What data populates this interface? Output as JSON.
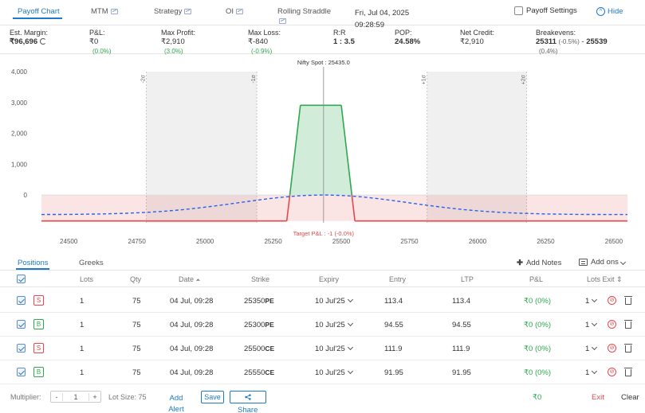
{
  "tabs": [
    {
      "label": "Payoff Chart"
    },
    {
      "label": "MTM"
    },
    {
      "label": "Strategy"
    },
    {
      "label": "OI"
    },
    {
      "label": "Rolling Straddle"
    }
  ],
  "date": {
    "line1": "Fri, Jul 04, 2025",
    "line2": "09:28:59"
  },
  "payoff_settings": "Payoff Settings",
  "hide": "Hide",
  "stats": {
    "margin": {
      "label": "Est. Margin:",
      "value": "₹96,696"
    },
    "pnl": {
      "label": "P&L:",
      "value": "₹0",
      "sub": "(0.0%)"
    },
    "max_profit": {
      "label": "Max Profit:",
      "value": "₹2,910",
      "sub": "(3.0%)"
    },
    "max_loss": {
      "label": "Max Loss:",
      "value": "₹-840",
      "sub": "(-0.9%)"
    },
    "rr": {
      "label": "R:R",
      "value": "1 : 3.5"
    },
    "pop": {
      "label": "POP:",
      "value": "24.58%"
    },
    "net_credit": {
      "label": "Net Credit:",
      "value": "₹2,910"
    },
    "breakevens": {
      "label": "Breakevens:",
      "low": "25311",
      "low_pct": "(-0.5%)",
      "sep": "-",
      "high": "25539",
      "high_pct": "(0.4%)"
    }
  },
  "chart_data": {
    "type": "line",
    "spot_label": "Nifty Spot : 25435.0",
    "target_label": "Target P&L : -1 (-0.0%)",
    "sd_labels": [
      "-2σ",
      "-1σ",
      "+1σ",
      "+2σ"
    ],
    "sd_x": [
      24785,
      25190,
      25815,
      26180
    ],
    "spot": 25435,
    "yticks": [
      "4,000",
      "3,000",
      "2,000",
      "1,000",
      "0"
    ],
    "ytick_values": [
      4000,
      3000,
      2000,
      1000,
      0
    ],
    "xticks": [
      "24500",
      "24750",
      "25000",
      "25250",
      "25500",
      "25750",
      "26000",
      "26250",
      "26500"
    ],
    "xtick_values": [
      24500,
      24750,
      25000,
      25250,
      25500,
      25750,
      26000,
      26250,
      26500
    ],
    "xlim": [
      24400,
      26550
    ],
    "ylim": [
      -900,
      4000
    ],
    "series": [
      {
        "x": [
          24400,
          25300,
          25350,
          25500,
          25550,
          26550
        ],
        "values": [
          -840,
          -840,
          2910,
          2910,
          -840,
          -840
        ]
      }
    ],
    "profit_color": "#2fa84f",
    "loss_color": "#e5484d",
    "bell_color": "#2563eb"
  },
  "positions": {
    "tab_positions": "Positions",
    "tab_greeks": "Greeks",
    "add_notes": "Add Notes",
    "add_ons": "Add ons",
    "headers": {
      "lots": "Lots",
      "qty": "Qty",
      "date": "Date",
      "strike": "Strike",
      "expiry": "Expiry",
      "entry": "Entry",
      "ltp": "LTP",
      "pnl": "P&L",
      "lots_exit": "Lots Exit"
    },
    "rows": [
      {
        "side": "S",
        "lots": "1",
        "qty": "75",
        "date": "04 Jul, 09:28",
        "strike": "25350",
        "type": "PE",
        "expiry": "10 Jul'25",
        "entry": "113.4",
        "ltp": "113.4",
        "pnl": "₹0 (0%)",
        "exit_lots": "1"
      },
      {
        "side": "B",
        "lots": "1",
        "qty": "75",
        "date": "04 Jul, 09:28",
        "strike": "25300",
        "type": "PE",
        "expiry": "10 Jul'25",
        "entry": "94.55",
        "ltp": "94.55",
        "pnl": "₹0 (0%)",
        "exit_lots": "1"
      },
      {
        "side": "S",
        "lots": "1",
        "qty": "75",
        "date": "04 Jul, 09:28",
        "strike": "25500",
        "type": "CE",
        "expiry": "10 Jul'25",
        "entry": "111.9",
        "ltp": "111.9",
        "pnl": "₹0 (0%)",
        "exit_lots": "1"
      },
      {
        "side": "B",
        "lots": "1",
        "qty": "75",
        "date": "04 Jul, 09:28",
        "strike": "25550",
        "type": "CE",
        "expiry": "10 Jul'25",
        "entry": "91.95",
        "ltp": "91.95",
        "pnl": "₹0 (0%)",
        "exit_lots": "1"
      }
    ]
  },
  "footer": {
    "multiplier_label": "Multiplier:",
    "minus": "-",
    "multiplier_value": "1",
    "plus": "+",
    "lot_size": "Lot Size: 75",
    "add_alert": "Add Alert",
    "save": "Save",
    "share": "Share",
    "total_pnl": "₹0",
    "exit": "Exit",
    "clear": "Clear"
  }
}
